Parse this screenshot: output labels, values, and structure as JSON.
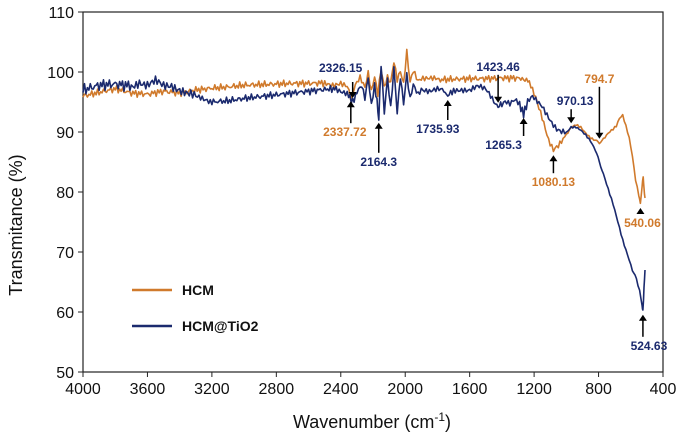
{
  "chart_data": {
    "type": "line",
    "xlabel": "Wavenumber (cm",
    "xlabel_sup": "-1",
    "xlabel_tail": ")",
    "ylabel": "Transmitance (%)",
    "xlim": [
      4000,
      400
    ],
    "ylim": [
      50,
      110
    ],
    "x_ticks": [
      4000,
      3600,
      3200,
      2800,
      2400,
      2000,
      1600,
      1200,
      800,
      400
    ],
    "y_ticks": [
      50,
      60,
      70,
      80,
      90,
      100,
      110
    ],
    "grid": false,
    "legend_position": "lower-left",
    "series": [
      {
        "name": "HCM",
        "color": "#D07A2C",
        "points": [
          [
            4000,
            96.0
          ],
          [
            3900,
            96.6
          ],
          [
            3800,
            97.2
          ],
          [
            3700,
            96.5
          ],
          [
            3600,
            96.3
          ],
          [
            3500,
            96.8
          ],
          [
            3400,
            96.5
          ],
          [
            3300,
            97.0
          ],
          [
            3200,
            97.3
          ],
          [
            3100,
            97.5
          ],
          [
            3000,
            97.8
          ],
          [
            2900,
            97.9
          ],
          [
            2800,
            98.0
          ],
          [
            2700,
            98.1
          ],
          [
            2600,
            98.1
          ],
          [
            2500,
            98.2
          ],
          [
            2450,
            98.0
          ],
          [
            2400,
            98.2
          ],
          [
            2360,
            97.5
          ],
          [
            2337.72,
            95.8
          ],
          [
            2310,
            97.6
          ],
          [
            2280,
            99.0
          ],
          [
            2250,
            97.5
          ],
          [
            2230,
            100.0
          ],
          [
            2210,
            97.0
          ],
          [
            2190,
            99.5
          ],
          [
            2170,
            96.5
          ],
          [
            2150,
            100.5
          ],
          [
            2130,
            97.5
          ],
          [
            2110,
            99.0
          ],
          [
            2090,
            98.0
          ],
          [
            2070,
            101.5
          ],
          [
            2050,
            98.5
          ],
          [
            2030,
            100.0
          ],
          [
            2010,
            98.0
          ],
          [
            1990,
            103.5
          ],
          [
            1970,
            98.5
          ],
          [
            1950,
            100.5
          ],
          [
            1920,
            98.7
          ],
          [
            1900,
            99.0
          ],
          [
            1850,
            98.8
          ],
          [
            1800,
            98.7
          ],
          [
            1700,
            98.8
          ],
          [
            1600,
            98.9
          ],
          [
            1500,
            98.9
          ],
          [
            1400,
            99.0
          ],
          [
            1300,
            99.0
          ],
          [
            1230,
            98.5
          ],
          [
            1190,
            96.0
          ],
          [
            1150,
            92.5
          ],
          [
            1110,
            88.5
          ],
          [
            1080.13,
            86.8
          ],
          [
            1050,
            87.5
          ],
          [
            1000,
            89.5
          ],
          [
            970,
            90.8
          ],
          [
            940,
            91.2
          ],
          [
            910,
            90.8
          ],
          [
            880,
            89.8
          ],
          [
            850,
            89.0
          ],
          [
            820,
            88.6
          ],
          [
            794.7,
            88.2
          ],
          [
            770,
            88.8
          ],
          [
            740,
            89.8
          ],
          [
            710,
            90.5
          ],
          [
            690,
            91.0
          ],
          [
            670,
            92.3
          ],
          [
            650,
            92.8
          ],
          [
            630,
            91.0
          ],
          [
            610,
            89.0
          ],
          [
            590,
            86.0
          ],
          [
            570,
            82.0
          ],
          [
            550,
            79.5
          ],
          [
            540.06,
            78.0
          ],
          [
            530,
            81.0
          ],
          [
            523,
            82.6
          ],
          [
            518,
            80.5
          ],
          [
            512,
            79.0
          ]
        ]
      },
      {
        "name": "HCM@TiO2",
        "color": "#1B2A6E",
        "points": [
          [
            4000,
            97.0
          ],
          [
            3900,
            97.8
          ],
          [
            3800,
            98.0
          ],
          [
            3700,
            97.7
          ],
          [
            3650,
            98.5
          ],
          [
            3600,
            97.8
          ],
          [
            3550,
            98.3
          ],
          [
            3500,
            97.5
          ],
          [
            3450,
            97.8
          ],
          [
            3400,
            97.3
          ],
          [
            3350,
            96.5
          ],
          [
            3300,
            95.8
          ],
          [
            3250,
            95.3
          ],
          [
            3200,
            95.0
          ],
          [
            3100,
            95.2
          ],
          [
            3000,
            95.6
          ],
          [
            2900,
            95.9
          ],
          [
            2800,
            96.2
          ],
          [
            2700,
            96.5
          ],
          [
            2600,
            96.8
          ],
          [
            2500,
            97.1
          ],
          [
            2420,
            97.2
          ],
          [
            2360,
            96.5
          ],
          [
            2326.15,
            95.0
          ],
          [
            2300,
            96.5
          ],
          [
            2270,
            97.5
          ],
          [
            2250,
            95.5
          ],
          [
            2230,
            99.0
          ],
          [
            2210,
            94.5
          ],
          [
            2190,
            98.0
          ],
          [
            2175,
            95.0
          ],
          [
            2164.3,
            92.2
          ],
          [
            2150,
            101.5
          ],
          [
            2130,
            93.5
          ],
          [
            2110,
            99.0
          ],
          [
            2090,
            94.0
          ],
          [
            2070,
            100.5
          ],
          [
            2050,
            93.0
          ],
          [
            2030,
            99.0
          ],
          [
            2010,
            94.5
          ],
          [
            1990,
            99.5
          ],
          [
            1970,
            95.5
          ],
          [
            1950,
            98.0
          ],
          [
            1920,
            96.5
          ],
          [
            1900,
            97.3
          ],
          [
            1850,
            96.8
          ],
          [
            1800,
            97.0
          ],
          [
            1760,
            96.8
          ],
          [
            1735.93,
            96.0
          ],
          [
            1700,
            97.0
          ],
          [
            1650,
            97.2
          ],
          [
            1600,
            97.0
          ],
          [
            1550,
            97.5
          ],
          [
            1500,
            97.0
          ],
          [
            1470,
            96.0
          ],
          [
            1440,
            94.8
          ],
          [
            1423.46,
            94.2
          ],
          [
            1400,
            94.8
          ],
          [
            1380,
            95.3
          ],
          [
            1350,
            94.8
          ],
          [
            1320,
            95.3
          ],
          [
            1290,
            94.5
          ],
          [
            1265.3,
            93.0
          ],
          [
            1240,
            95.0
          ],
          [
            1210,
            96.0
          ],
          [
            1180,
            95.3
          ],
          [
            1150,
            94.5
          ],
          [
            1120,
            93.0
          ],
          [
            1090,
            91.5
          ],
          [
            1060,
            90.3
          ],
          [
            1030,
            89.8
          ],
          [
            1000,
            89.9
          ],
          [
            970.13,
            90.8
          ],
          [
            940,
            90.8
          ],
          [
            910,
            90.3
          ],
          [
            880,
            89.5
          ],
          [
            850,
            88.5
          ],
          [
            820,
            87.0
          ],
          [
            794.7,
            85.0
          ],
          [
            770,
            83.0
          ],
          [
            740,
            80.5
          ],
          [
            710,
            78.0
          ],
          [
            680,
            75.0
          ],
          [
            650,
            72.0
          ],
          [
            620,
            69.5
          ],
          [
            590,
            67.0
          ],
          [
            565,
            65.5
          ],
          [
            545,
            63.5
          ],
          [
            530,
            61.0
          ],
          [
            524.63,
            60.2
          ],
          [
            518,
            64.0
          ],
          [
            512,
            67.0
          ]
        ]
      }
    ],
    "annotations": [
      {
        "text": "2326.15",
        "x": 2326.15,
        "y": 95.0,
        "side": "above",
        "series": "HCM@TiO2"
      },
      {
        "text": "2337.72",
        "x": 2337.72,
        "y": 95.8,
        "side": "below",
        "series": "HCM"
      },
      {
        "text": "2164.3",
        "x": 2164.3,
        "y": 92.2,
        "side": "below",
        "series": "HCM@TiO2"
      },
      {
        "text": "1735.93",
        "x": 1735.93,
        "y": 96.0,
        "side": "below",
        "series": "HCM@TiO2"
      },
      {
        "text": "1423.46",
        "x": 1423.46,
        "y": 94.2,
        "side": "above",
        "series": "HCM@TiO2"
      },
      {
        "text": "1265.3",
        "x": 1265.3,
        "y": 93.0,
        "side": "below",
        "series": "HCM@TiO2"
      },
      {
        "text": "970.13",
        "x": 970.13,
        "y": 90.8,
        "side": "above",
        "series": "HCM@TiO2"
      },
      {
        "text": "794.7",
        "x": 794.7,
        "y": 88.2,
        "side": "above",
        "series": "HCM"
      },
      {
        "text": "1080.13",
        "x": 1080.13,
        "y": 86.8,
        "side": "below",
        "series": "HCM"
      },
      {
        "text": "540.06",
        "x": 540.06,
        "y": 78.0,
        "side": "below",
        "series": "HCM"
      },
      {
        "text": "524.63",
        "x": 524.63,
        "y": 60.2,
        "side": "below",
        "series": "HCM@TiO2"
      }
    ]
  }
}
